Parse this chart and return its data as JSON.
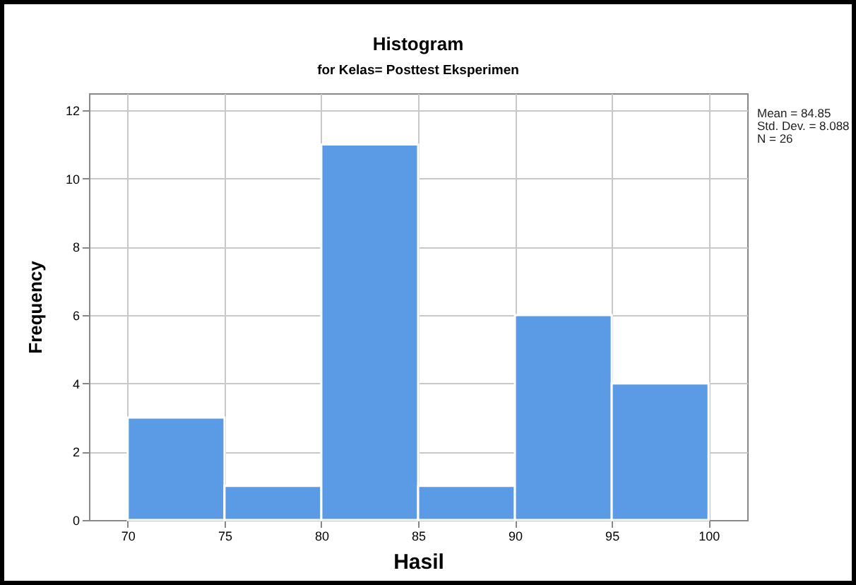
{
  "chart_data": {
    "type": "histogram",
    "title": "Histogram",
    "subtitle": "for Kelas= Posttest Eksperimen",
    "xlabel": "Hasil",
    "ylabel": "Frequency",
    "bins": [
      70,
      75,
      80,
      85,
      90,
      95,
      100
    ],
    "values": [
      3,
      1,
      11,
      1,
      6,
      4
    ],
    "color": "#5b9be6",
    "xlim": [
      68,
      102
    ],
    "xticks": [
      70,
      75,
      80,
      85,
      90,
      95,
      100
    ],
    "ylim": [
      0,
      12.5
    ],
    "yticks": [
      0,
      2,
      4,
      6,
      8,
      10,
      12
    ],
    "grid": true,
    "annotations": [
      "Mean = 84.85",
      "Std. Dev. = 8.088",
      "N = 26"
    ]
  }
}
